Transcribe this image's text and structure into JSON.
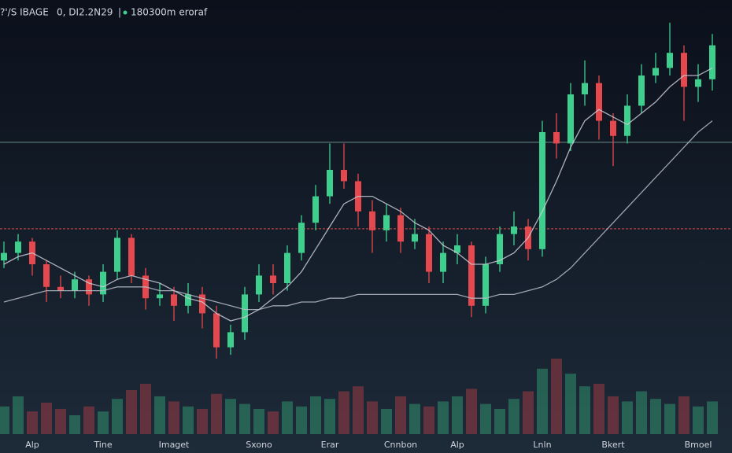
{
  "header": {
    "symbol": "?'/S IBAGE",
    "price": "0, DI2.2N29",
    "separator": "|",
    "status": "180300m eroraf"
  },
  "chart_data": {
    "type": "candlestick",
    "categories": [
      null,
      null,
      "Alp",
      null,
      null,
      null,
      null,
      "Tine",
      null,
      null,
      null,
      null,
      "Imaget",
      null,
      null,
      null,
      null,
      null,
      "Sxono",
      null,
      null,
      null,
      null,
      "Erar",
      null,
      null,
      null,
      null,
      "Cnnbon",
      null,
      null,
      null,
      "Alp",
      null,
      null,
      null,
      null,
      null,
      "Lnln",
      null,
      null,
      null,
      null,
      "Bkert",
      null,
      null,
      null,
      null,
      null,
      "Bmoel",
      null
    ],
    "open": [
      31,
      33,
      36,
      30,
      24,
      23,
      26,
      22,
      28,
      37,
      27,
      21,
      22,
      19,
      22,
      17,
      8,
      12,
      22,
      27,
      25,
      33,
      41,
      48,
      55,
      52,
      44,
      39,
      43,
      36,
      38,
      28,
      33,
      35,
      19,
      30,
      38,
      40,
      34,
      65,
      62,
      75,
      78,
      68,
      64,
      72,
      80,
      82,
      86,
      77,
      79
    ],
    "high": [
      36,
      38,
      37,
      31,
      27,
      28,
      27,
      30,
      39,
      38,
      29,
      25,
      24,
      25,
      24,
      19,
      14,
      24,
      30,
      30,
      35,
      43,
      51,
      62,
      62,
      54,
      47,
      46,
      45,
      42,
      40,
      36,
      38,
      36,
      32,
      40,
      44,
      42,
      68,
      70,
      78,
      84,
      80,
      70,
      75,
      83,
      86,
      94,
      88,
      83,
      91
    ],
    "low": [
      29,
      31,
      27,
      20,
      21,
      21,
      19,
      20,
      26,
      25,
      18,
      19,
      15,
      17,
      13,
      5,
      6,
      10,
      20,
      22,
      23,
      31,
      39,
      46,
      50,
      40,
      33,
      36,
      33,
      34,
      25,
      25,
      30,
      16,
      17,
      28,
      35,
      31,
      32,
      58,
      60,
      72,
      63,
      56,
      62,
      70,
      78,
      80,
      68,
      73,
      76
    ],
    "close": [
      33,
      36,
      30,
      24,
      23,
      26,
      22,
      28,
      37,
      27,
      21,
      22,
      19,
      22,
      17,
      8,
      12,
      22,
      27,
      25,
      33,
      41,
      48,
      55,
      52,
      44,
      39,
      43,
      36,
      38,
      28,
      33,
      35,
      19,
      30,
      38,
      40,
      34,
      65,
      62,
      75,
      78,
      68,
      64,
      72,
      80,
      82,
      86,
      77,
      79,
      88
    ],
    "volume": [
      22,
      30,
      18,
      25,
      20,
      15,
      22,
      18,
      28,
      35,
      40,
      30,
      26,
      22,
      20,
      32,
      28,
      24,
      20,
      18,
      26,
      22,
      30,
      28,
      34,
      38,
      26,
      20,
      30,
      24,
      22,
      26,
      30,
      36,
      24,
      20,
      28,
      34,
      52,
      60,
      48,
      38,
      40,
      30,
      26,
      34,
      28,
      24,
      30,
      22,
      26
    ],
    "up_color": "#3ecf8e",
    "down_color": "#e5484d",
    "overlays": [
      {
        "color": "#c9ccd6",
        "values": [
          30,
          32,
          33,
          31,
          29,
          27,
          25,
          24,
          26,
          27,
          26,
          25,
          23,
          21,
          20,
          17,
          15,
          16,
          18,
          21,
          24,
          28,
          34,
          40,
          46,
          48,
          48,
          46,
          44,
          41,
          39,
          35,
          33,
          30,
          30,
          31,
          33,
          37,
          44,
          52,
          61,
          68,
          71,
          69,
          67,
          70,
          73,
          77,
          80,
          80,
          82
        ]
      },
      {
        "color": "#b7bcc8",
        "values": [
          20,
          21,
          22,
          23,
          23,
          23,
          23,
          23,
          24,
          24,
          24,
          23,
          23,
          22,
          21,
          20,
          19,
          18,
          18,
          19,
          19,
          20,
          20,
          21,
          21,
          22,
          22,
          22,
          22,
          22,
          22,
          22,
          22,
          21,
          21,
          22,
          22,
          23,
          24,
          26,
          29,
          33,
          37,
          41,
          45,
          49,
          53,
          57,
          61,
          65,
          68
        ]
      }
    ],
    "levels": [
      {
        "value": 62.3,
        "color": "#5f7f7a",
        "dashed": false
      },
      {
        "value": 39.4,
        "color": "#b5413f",
        "dashed": true
      }
    ],
    "ylim": [
      0,
      100
    ],
    "vlim": [
      0,
      100
    ]
  }
}
